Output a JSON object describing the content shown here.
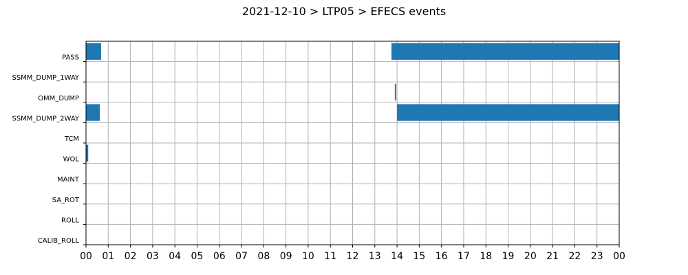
{
  "chart_data": {
    "type": "timeline",
    "title": "2021-12-10 > LTP05 > EFECS events",
    "xlabel": "",
    "ylabel": "",
    "x_unit": "hour",
    "xlim": [
      0,
      24
    ],
    "x_tick_labels": [
      "00",
      "01",
      "02",
      "03",
      "04",
      "05",
      "06",
      "07",
      "08",
      "09",
      "10",
      "11",
      "12",
      "13",
      "14",
      "15",
      "16",
      "17",
      "18",
      "19",
      "20",
      "21",
      "22",
      "23",
      "00"
    ],
    "grid": true,
    "bar_color": "#1f77b4",
    "categories": [
      "PASS",
      "SSMM_DUMP_1WAY",
      "OMM_DUMP",
      "SSMM_DUMP_2WAY",
      "TCM",
      "WOL",
      "MAINT",
      "SA_ROT",
      "ROLL",
      "CALIB_ROLL"
    ],
    "events": [
      {
        "category": "PASS",
        "start": 0.0,
        "end": 0.68
      },
      {
        "category": "PASS",
        "start": 13.75,
        "end": 24.0
      },
      {
        "category": "OMM_DUMP",
        "start": 13.9,
        "end": 13.96
      },
      {
        "category": "SSMM_DUMP_2WAY",
        "start": 0.0,
        "end": 0.62
      },
      {
        "category": "SSMM_DUMP_2WAY",
        "start": 14.0,
        "end": 24.0
      },
      {
        "category": "WOL",
        "start": 0.0,
        "end": 0.1
      }
    ]
  }
}
